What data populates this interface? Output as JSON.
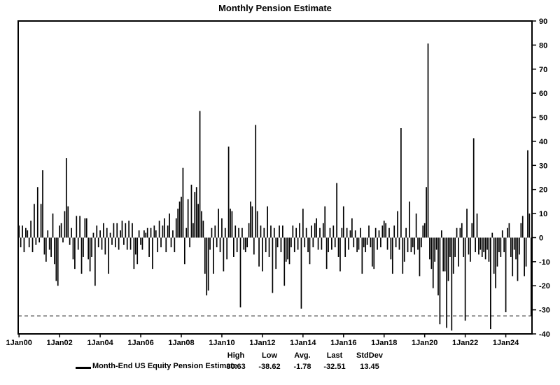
{
  "title": "Monthly Pension Estimate",
  "chart_data": {
    "type": "bar",
    "series_name": "Month-End US Equity Pension Estimate",
    "frequency": "monthly",
    "x_start": "Jan 2000",
    "x_end": "Apr 2025",
    "values": [
      5,
      -4,
      5,
      -6,
      4,
      3,
      -4,
      7,
      -6,
      14,
      -3,
      21,
      -2,
      14,
      28,
      -7,
      -10,
      3,
      -5,
      -8,
      10,
      -11,
      -18,
      -20,
      5,
      6,
      -2,
      11,
      33,
      13,
      -3,
      4,
      -9,
      -13,
      9,
      -5,
      9,
      -15,
      -8,
      8,
      8,
      -9,
      -14,
      -8,
      2,
      -20,
      5,
      -4,
      3,
      -5,
      6,
      -7,
      4,
      -15,
      2,
      -3,
      6,
      -4,
      6,
      -5,
      3,
      7,
      -3,
      6,
      -5,
      7,
      -5,
      6,
      -13,
      -7,
      -11,
      3,
      -3,
      -5,
      3,
      2,
      4,
      -8,
      4,
      -13,
      5,
      3,
      -6,
      7,
      -4,
      5,
      8,
      -6,
      5,
      10,
      -4,
      3,
      -6,
      8,
      12,
      15,
      17,
      29,
      -11,
      4,
      16,
      -4,
      22,
      6,
      19,
      21,
      14,
      52.6,
      11,
      7,
      -15,
      -24,
      -22,
      -5,
      4,
      -15,
      5,
      -4,
      12,
      -6,
      8,
      -14,
      4,
      -9,
      37.8,
      12,
      11,
      -8,
      5,
      -6,
      4,
      -29,
      4,
      -5,
      -6,
      -4,
      6,
      15,
      13,
      -7,
      46.8,
      11,
      -12,
      5,
      -14,
      4,
      -6,
      13,
      -8,
      5,
      -23,
      4,
      -13,
      -4,
      5,
      -6,
      5,
      -20,
      -10,
      -9,
      -11,
      -4,
      5,
      -6,
      4,
      -5,
      6,
      -29.5,
      12,
      -4,
      4,
      -6,
      -11,
      5,
      -4,
      6,
      8,
      -5,
      4,
      -5,
      6,
      13,
      -13,
      -6,
      4,
      -5,
      5,
      -4,
      22.7,
      -8,
      -14,
      4,
      13,
      -8,
      4,
      -5,
      3,
      8,
      -4,
      3,
      -6,
      -5,
      4,
      -15,
      -4,
      -6,
      -3,
      5,
      -4,
      -12,
      -13,
      4,
      -5,
      3,
      -4,
      5,
      7,
      6,
      -5,
      4,
      -9,
      -15,
      5,
      -4,
      11,
      -5,
      45.5,
      -15,
      -10,
      4,
      -6,
      15,
      -6,
      -4,
      -7,
      10,
      -5,
      -16,
      -4,
      5,
      6,
      21,
      80.63,
      -9,
      -13,
      -21,
      -10,
      -5,
      -24,
      -36,
      3,
      -14,
      -14,
      -37.5,
      -18,
      -8,
      -38.62,
      -15,
      -8,
      4,
      -12,
      4,
      6,
      -8,
      -34.5,
      12,
      -7,
      -10,
      6,
      41.3,
      -6,
      10,
      -7,
      -5,
      -8,
      -6,
      -9,
      -5,
      -10,
      -38,
      2,
      -15,
      -21,
      -12,
      -6,
      -8,
      3,
      -6,
      -31,
      4,
      6,
      -8,
      -16,
      -5,
      -9,
      -18,
      -7,
      6,
      9,
      -16,
      -12,
      36.3,
      10,
      -32.51
    ],
    "x_tick_labels": [
      "1Jan00",
      "1Jan02",
      "1Jan04",
      "1Jan06",
      "1Jan08",
      "1Jan10",
      "1Jan12",
      "1Jan14",
      "1Jan16",
      "1Jan18",
      "1Jan20",
      "1Jan22",
      "1Jan24"
    ],
    "x_tick_indices": [
      0,
      24,
      48,
      72,
      96,
      120,
      144,
      168,
      192,
      216,
      240,
      264,
      288
    ],
    "y_ticks": [
      90,
      80,
      70,
      60,
      50,
      40,
      30,
      20,
      10,
      0,
      -10,
      -20,
      -30,
      -40
    ],
    "ylim": [
      -40,
      90
    ],
    "grid": "off",
    "axis_side": "right",
    "reference_line": {
      "style": "dashed",
      "value": -32.51
    }
  },
  "legend": {
    "label": "Month-End US Equity Pension Estimate"
  },
  "stats": {
    "columns": [
      {
        "label": "High",
        "value": "80.63"
      },
      {
        "label": "Low",
        "value": "-38.62"
      },
      {
        "label": "Avg.",
        "value": "-1.78"
      },
      {
        "label": "Last",
        "value": "-32.51"
      },
      {
        "label": "StdDev",
        "value": "13.45"
      }
    ]
  },
  "colors": {
    "bar": "#000000",
    "axis": "#000000",
    "text": "#000000",
    "background": "#ffffff"
  }
}
